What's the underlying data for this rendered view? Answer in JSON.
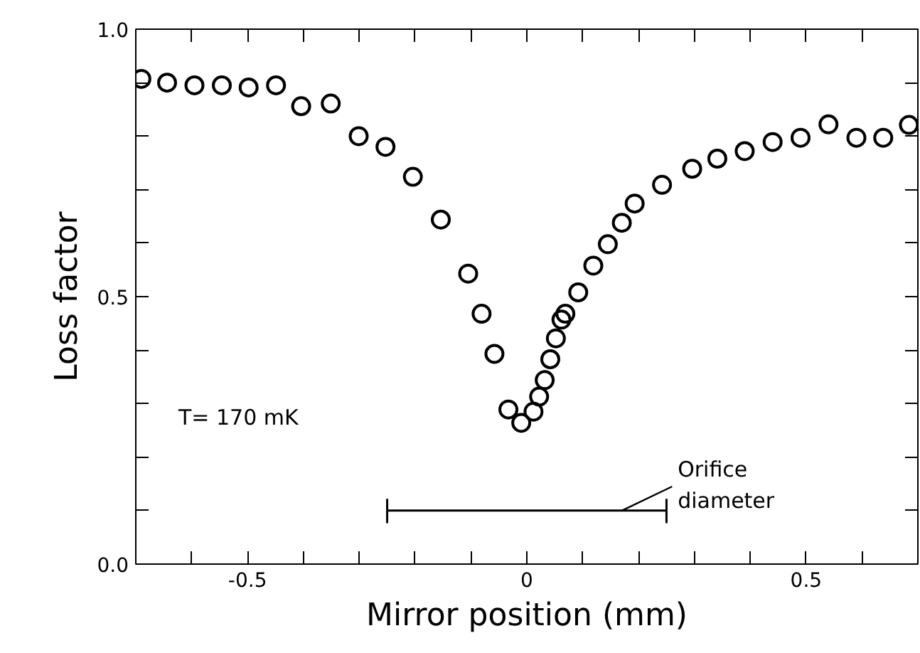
{
  "chart_data": {
    "type": "scatter",
    "xlabel": "Mirror position (mm)",
    "ylabel": "Loss factor",
    "grid": false,
    "xlim": [
      -0.7,
      0.7
    ],
    "ylim": [
      0,
      1
    ],
    "xticks": [
      {
        "value": -0.7,
        "label": null
      },
      {
        "value": -0.6,
        "label": null
      },
      -0.5,
      {
        "value": -0.4,
        "label": null
      },
      {
        "value": -0.3,
        "label": null
      },
      {
        "value": -0.2,
        "label": null
      },
      {
        "value": -0.1,
        "label": null
      },
      0,
      {
        "value": 0.1,
        "label": null
      },
      {
        "value": 0.2,
        "label": null
      },
      {
        "value": 0.3,
        "label": null
      },
      {
        "value": 0.4,
        "label": null
      },
      0.5,
      {
        "value": 0.6,
        "label": null
      }
    ],
    "yticks": [
      {
        "value": 0,
        "label": "0.0"
      },
      {
        "value": 0.1,
        "label": null
      },
      {
        "value": 0.2,
        "label": null
      },
      {
        "value": 0.3,
        "label": null
      },
      {
        "value": 0.4,
        "label": null
      },
      0.5,
      {
        "value": 0.6,
        "label": null
      },
      {
        "value": 0.7,
        "label": null
      },
      {
        "value": 0.8,
        "label": null
      },
      {
        "value": 0.9,
        "label": null
      },
      {
        "value": 1,
        "label": "1.0"
      }
    ],
    "series": [
      {
        "marker": "circle",
        "color": "#000000",
        "x": [
          -0.69,
          -0.644,
          -0.595,
          -0.546,
          -0.498,
          -0.449,
          -0.404,
          -0.351,
          -0.301,
          -0.253,
          -0.204,
          -0.154,
          -0.105,
          -0.081,
          -0.058,
          -0.033,
          -0.01,
          0.012,
          0.022,
          0.032,
          0.042,
          0.052,
          0.062,
          0.069,
          0.092,
          0.119,
          0.145,
          0.17,
          0.193,
          0.242,
          0.296,
          0.341,
          0.39,
          0.44,
          0.49,
          0.54,
          0.59,
          0.638,
          0.684
        ],
        "values": [
          0.907,
          0.9,
          0.895,
          0.895,
          0.891,
          0.895,
          0.856,
          0.861,
          0.8,
          0.78,
          0.724,
          0.644,
          0.543,
          0.468,
          0.393,
          0.289,
          0.264,
          0.285,
          0.313,
          0.344,
          0.383,
          0.422,
          0.457,
          0.468,
          0.508,
          0.558,
          0.598,
          0.638,
          0.674,
          0.709,
          0.739,
          0.758,
          0.772,
          0.789,
          0.797,
          0.822,
          0.797,
          0.797,
          0.821
        ]
      },
      {
        "type": "line",
        "marker": "none",
        "color": "#000000",
        "x": [
          -0.25,
          -0.25,
          -0.25,
          0.25,
          0.25,
          0.25
        ],
        "values": [
          0.122,
          0.078,
          0.1,
          0.1,
          0.078,
          0.122
        ]
      }
    ],
    "annotations": [
      "T= 170 mK",
      {
        "text": "Orifice\ndiameter",
        "x": 0.17,
        "y": 0.1
      }
    ]
  }
}
